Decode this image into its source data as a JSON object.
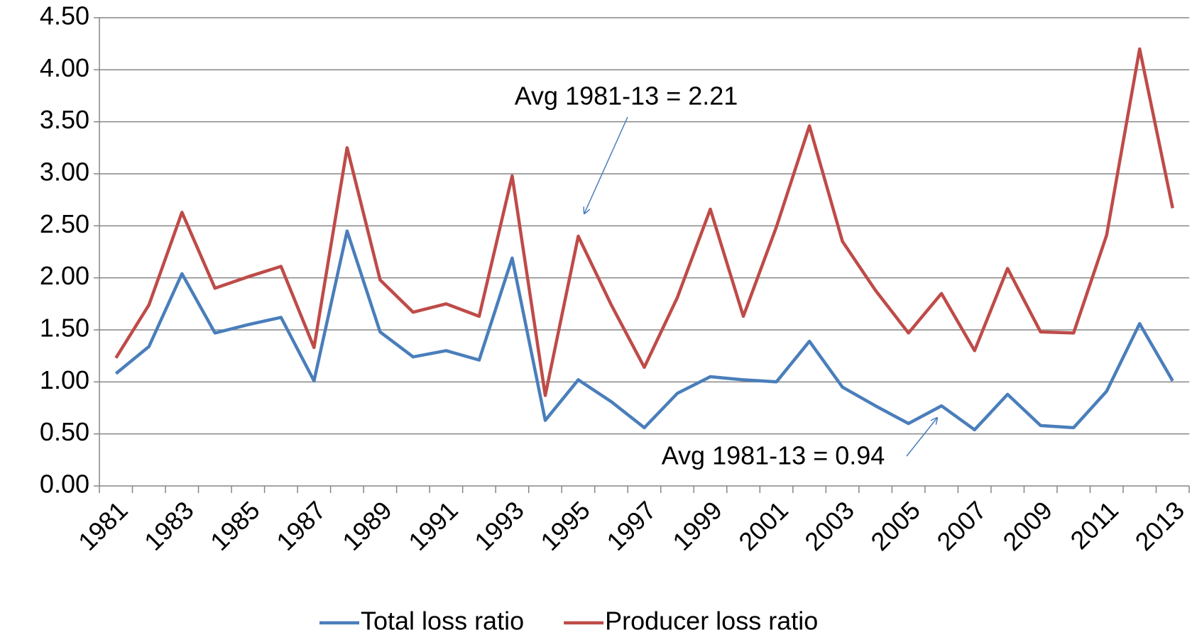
{
  "chart_data": {
    "type": "line",
    "categories": [
      "1981",
      null,
      "1983",
      null,
      "1985",
      null,
      "1987",
      null,
      "1989",
      null,
      "1991",
      null,
      "1993",
      null,
      "1995",
      null,
      "1997",
      null,
      "1999",
      null,
      "2001",
      null,
      "2003",
      null,
      "2005",
      null,
      "2007",
      null,
      "2009",
      null,
      "2011",
      null,
      "2013"
    ],
    "series": [
      {
        "name": "Total loss ratio",
        "color": "#4a7ebb",
        "values": [
          1.08,
          1.34,
          2.04,
          1.47,
          1.55,
          1.62,
          1.01,
          2.45,
          1.48,
          1.24,
          1.3,
          1.21,
          2.19,
          0.63,
          1.02,
          0.81,
          0.56,
          0.89,
          1.05,
          1.02,
          1.0,
          1.39,
          0.95,
          0.77,
          0.6,
          0.77,
          0.54,
          0.88,
          0.58,
          0.56,
          0.91,
          1.56,
          1.01
        ]
      },
      {
        "name": "Producer loss ratio",
        "color": "#be4b48",
        "values": [
          1.23,
          1.74,
          2.63,
          1.9,
          2.01,
          2.11,
          1.33,
          3.25,
          1.98,
          1.67,
          1.75,
          1.63,
          2.98,
          0.87,
          2.4,
          1.74,
          1.14,
          1.81,
          2.66,
          1.63,
          2.49,
          3.46,
          2.35,
          1.88,
          1.47,
          1.85,
          1.3,
          2.09,
          1.48,
          1.47,
          2.41,
          4.2,
          2.67
        ]
      }
    ],
    "ylim": [
      0,
      4.5
    ],
    "yticks": [
      {
        "value": 0,
        "label": "0.00"
      },
      {
        "value": 0.5,
        "label": "0.50"
      },
      {
        "value": 1,
        "label": "1.00"
      },
      {
        "value": 1.5,
        "label": "1.50"
      },
      {
        "value": 2,
        "label": "2.00"
      },
      {
        "value": 2.5,
        "label": "2.50"
      },
      {
        "value": 3,
        "label": "3.00"
      },
      {
        "value": 3.5,
        "label": "3.50"
      },
      {
        "value": 4,
        "label": "4.00"
      },
      {
        "value": 4.5,
        "label": "4.50"
      }
    ],
    "grid": true,
    "legend": "bottom",
    "annotations": [
      {
        "text": "Avg 1981-13 = 2.21"
      },
      {
        "text": "Avg 1981-13 = 0.94"
      }
    ]
  }
}
